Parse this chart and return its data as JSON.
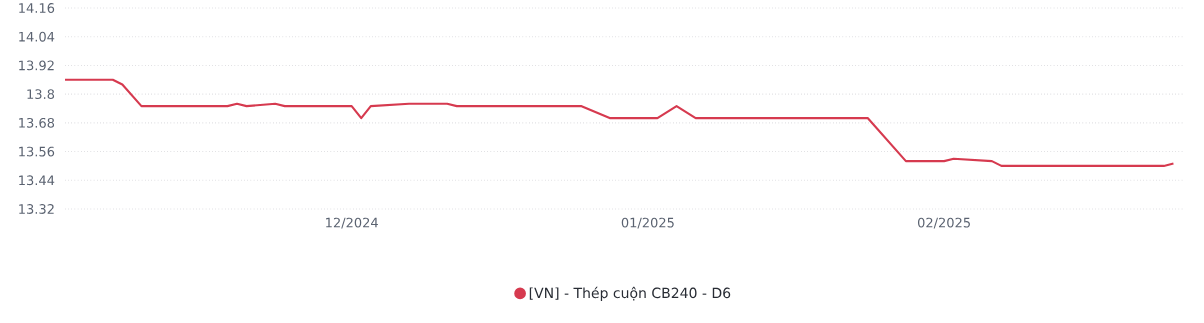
{
  "chart_data": {
    "type": "line",
    "x": [
      "2024-11-01",
      "2024-11-06",
      "2024-11-07",
      "2024-11-09",
      "2024-11-18",
      "2024-11-19",
      "2024-11-20",
      "2024-11-23",
      "2024-11-24",
      "2024-12-01",
      "2024-12-02",
      "2024-12-03",
      "2024-12-07",
      "2024-12-11",
      "2024-12-12",
      "2024-12-25",
      "2024-12-28",
      "2025-01-02",
      "2025-01-04",
      "2025-01-06",
      "2025-01-24",
      "2025-01-28",
      "2025-02-01",
      "2025-02-02",
      "2025-02-06",
      "2025-02-07",
      "2025-02-24",
      "2025-02-25"
    ],
    "series": [
      {
        "name": "[VN] - Thép cuộn CB240 - D6",
        "color": "#d63a4f",
        "values": [
          13.86,
          13.86,
          13.84,
          13.75,
          13.75,
          13.76,
          13.75,
          13.76,
          13.75,
          13.75,
          13.7,
          13.75,
          13.76,
          13.76,
          13.75,
          13.75,
          13.7,
          13.7,
          13.75,
          13.7,
          13.7,
          13.52,
          13.52,
          13.53,
          13.52,
          13.5,
          13.5,
          13.51
        ]
      }
    ],
    "xlim": [
      "2024-11-01",
      "2025-02-26"
    ],
    "xticks": [
      {
        "value": "2024-12-01",
        "label": "12/2024"
      },
      {
        "value": "2025-01-01",
        "label": "01/2025"
      },
      {
        "value": "2025-02-01",
        "label": "02/2025"
      }
    ],
    "ylim": [
      13.32,
      14.16
    ],
    "yticks": [
      13.32,
      13.44,
      13.56,
      13.68,
      13.8,
      13.92,
      14.04,
      14.16
    ],
    "grid": "y",
    "legend": "bottom",
    "marker": "none",
    "line_style": "solid"
  }
}
